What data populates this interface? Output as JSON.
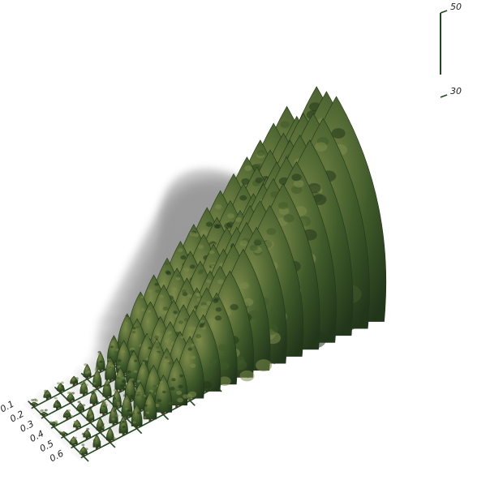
{
  "chart_data": {
    "type": "3d-tree-height-field",
    "title": "",
    "row_axis_ticks": [
      "0.1",
      "0.2",
      "0.3",
      "0.4",
      "0.5",
      "0.6"
    ],
    "height_axis_ticks": [
      "50",
      "30"
    ],
    "colors": {
      "grid": "#1f4a1f",
      "axis": "#1f4a1f",
      "foliage_dark": "#22361a",
      "foliage_mid": "#3f5a2a",
      "foliage_light": "#7c8a4a",
      "shadow": "#9a9a9a"
    },
    "tree_heights": [
      [
        1,
        2,
        2,
        2,
        3,
        4,
        6,
        9,
        12,
        14,
        16,
        18,
        20,
        22,
        24,
        26,
        28,
        30,
        32,
        34
      ],
      [
        1,
        2,
        2,
        3,
        4,
        5,
        7,
        10,
        12,
        14,
        16,
        18,
        20,
        22,
        24,
        26,
        28,
        30,
        32,
        34
      ],
      [
        1,
        2,
        2,
        3,
        4,
        5,
        7,
        9,
        11,
        13,
        16,
        18,
        20,
        22,
        24,
        26,
        28,
        30,
        32,
        36
      ],
      [
        1,
        2,
        3,
        3,
        4,
        5,
        7,
        10,
        12,
        14,
        16,
        18,
        21,
        24,
        27,
        30,
        33,
        36,
        40,
        44
      ],
      [
        2,
        2,
        3,
        4,
        5,
        6,
        8,
        10,
        12,
        15,
        18,
        21,
        24,
        27,
        30,
        33,
        36,
        39,
        42,
        45
      ],
      [
        2,
        3,
        3,
        4,
        5,
        6,
        8,
        10,
        13,
        16,
        19,
        22,
        25,
        28,
        31,
        34,
        37,
        40,
        43,
        46
      ]
    ]
  }
}
